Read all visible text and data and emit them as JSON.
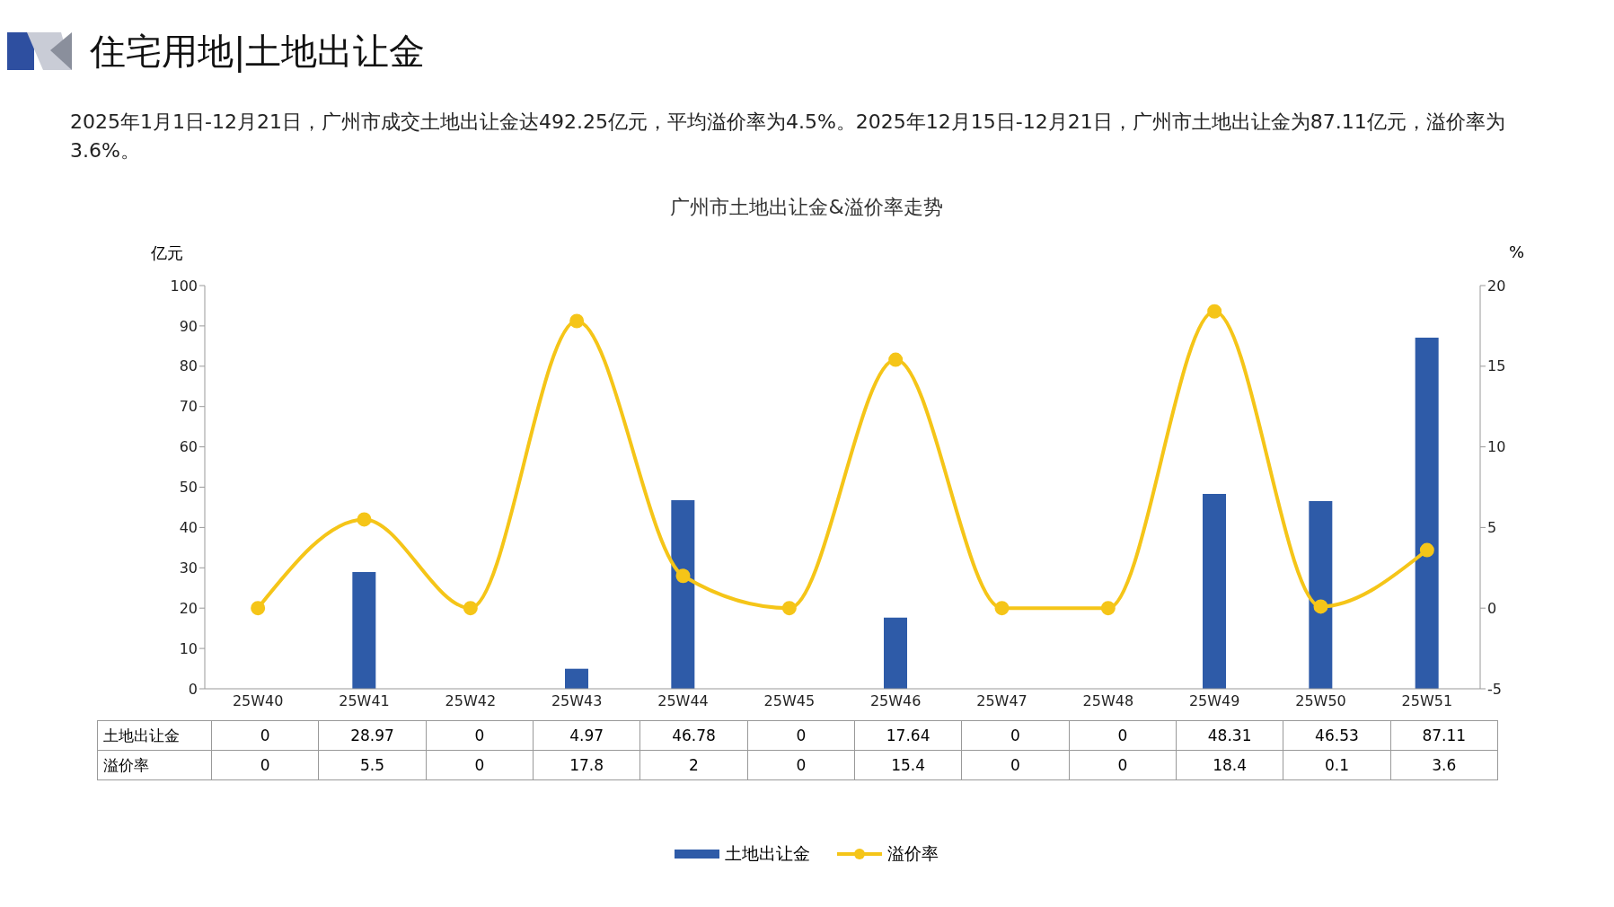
{
  "chart_data": {
    "type": "bar",
    "title": "住宅用地|土地出让金",
    "subtitle": "2025年1月1日-12月21日，广州市成交土地出让金达492.25亿元，平均溢价率为4.5%。2025年12月15日-12月21日，广州市土地出让金为87.11亿元，溢价率为3.6%。",
    "annotations": [
      "广州市土地出让金&溢价率走势"
    ],
    "ylabel": "亿元",
    "y2label": "%",
    "categories": [
      "25W40",
      "25W41",
      "25W42",
      "25W43",
      "25W44",
      "25W45",
      "25W46",
      "25W47",
      "25W48",
      "25W49",
      "25W50",
      "25W51"
    ],
    "series": [
      {
        "name": "土地出让金",
        "color": "#2e5ba8",
        "values": [
          0,
          28.97,
          0,
          4.97,
          46.78,
          0,
          17.64,
          0,
          0,
          48.31,
          46.53,
          87.11
        ]
      },
      {
        "name": "溢价率",
        "type": "line",
        "axis": "y2",
        "color": "#f5c518",
        "marker": "circle",
        "values": [
          0,
          5.5,
          0,
          17.8,
          2,
          0,
          15.4,
          0,
          0,
          18.4,
          0.1,
          3.6
        ]
      }
    ],
    "ylim": [
      0,
      100
    ],
    "yticks": [
      0,
      10,
      20,
      30,
      40,
      50,
      60,
      70,
      80,
      90,
      100
    ],
    "y2lim": [
      -5,
      20
    ],
    "y2ticks": [
      -5,
      0,
      5,
      10,
      15,
      20
    ],
    "legend": "bottom",
    "data_labels": true
  }
}
